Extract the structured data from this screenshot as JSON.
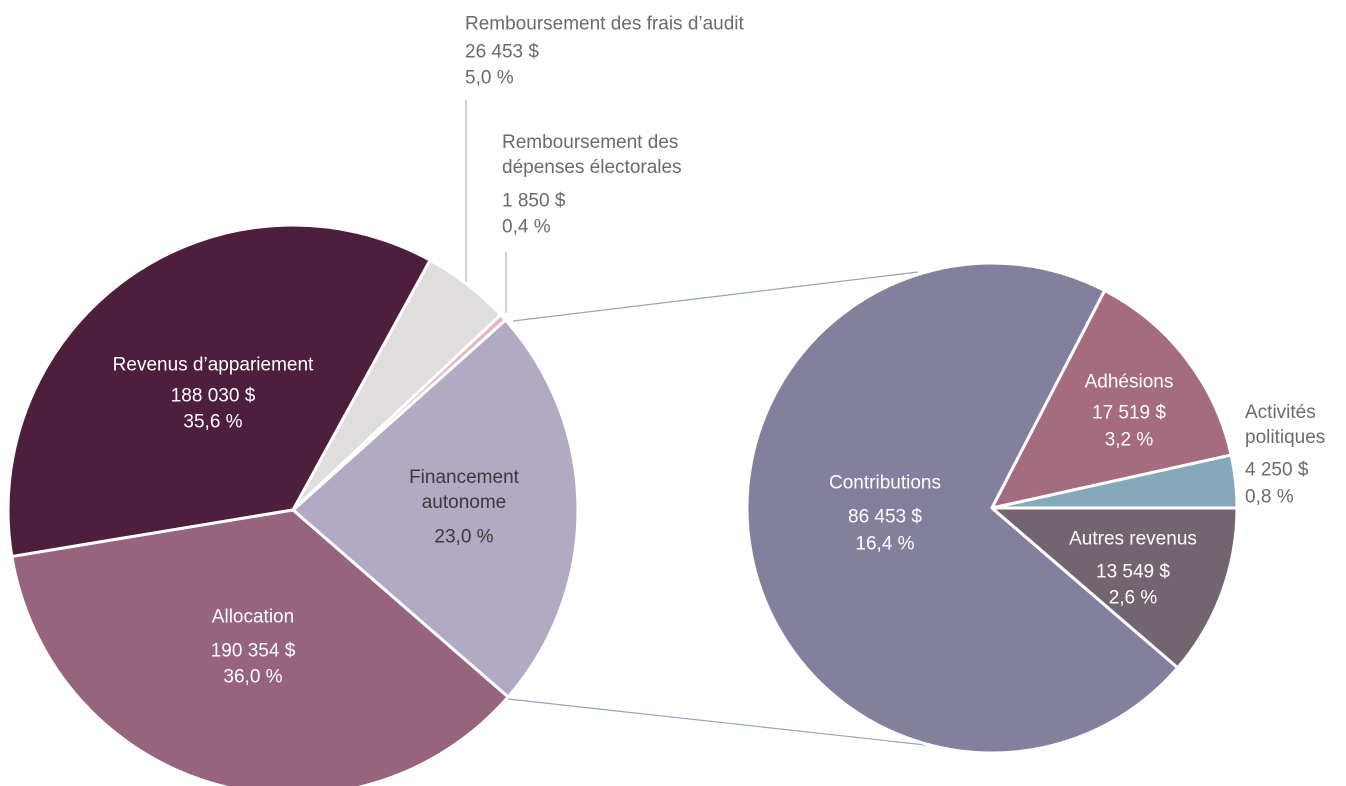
{
  "chart_data": [
    {
      "type": "pie",
      "categories": [
        "Financement autonome",
        "Remboursement des dépenses électorales",
        "Remboursement des frais d’audit",
        "Revenus d’appariement",
        "Allocation"
      ],
      "values": [
        23.0,
        0.4,
        5.0,
        35.6,
        36.0
      ],
      "value_labels": [
        "23,0 %",
        "0,4 %",
        "5,0 %",
        "35,6 %",
        "36,0 %"
      ],
      "amounts": [
        null,
        1850,
        26453,
        188030,
        190354
      ],
      "amount_labels": [
        null,
        "1 850 $",
        "26 453 $",
        "188 030 $",
        "190 354 $"
      ],
      "colors": [
        "#b1aac2",
        "#e8b4c0",
        "#e0dddf",
        "#4e1f3c",
        "#96647c"
      ]
    },
    {
      "type": "pie",
      "categories": [
        "Contributions",
        "Autres revenus",
        "Activités politiques",
        "Adhésions"
      ],
      "values": [
        16.4,
        2.6,
        0.8,
        3.2
      ],
      "value_labels": [
        "16,4 %",
        "2,6 %",
        "0,8 %",
        "3,2 %"
      ],
      "amounts": [
        86453,
        13549,
        4250,
        17519
      ],
      "amount_labels": [
        "86 453 $",
        "13 549 $",
        "4 250 $",
        "17 519 $"
      ],
      "colors": [
        "#83809d",
        "#726570",
        "#85a9bb",
        "#a46c7e"
      ]
    }
  ]
}
